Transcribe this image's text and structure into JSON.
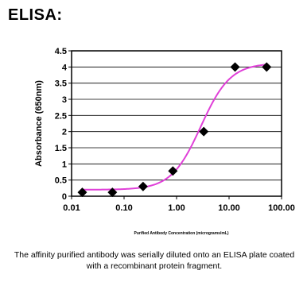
{
  "page": {
    "title": "ELISA:",
    "caption": "The affinity purified antibody was serially diluted onto an ELISA plate coated with a recombinant protein fragment."
  },
  "colors": {
    "curve": "#e040d8",
    "marker": "#000000",
    "plot_border": "#000000",
    "gridline": "#000000"
  },
  "chart_data": {
    "type": "scatter",
    "title": "",
    "xlabel": "Purified Antibody Concentration (micrograms/mL)",
    "ylabel": "Absorbance (650nm)",
    "xscale": "log",
    "xlim": [
      0.01,
      100
    ],
    "ylim": [
      0,
      4.5
    ],
    "grid": "horizontal",
    "legend": "none",
    "x_ticks": [
      {
        "value": 0.01,
        "label": "0.01"
      },
      {
        "value": 0.1,
        "label": "0.10"
      },
      {
        "value": 1,
        "label": "1.00"
      },
      {
        "value": 10,
        "label": "10.00"
      },
      {
        "value": 100,
        "label": "100.00"
      }
    ],
    "y_ticks": [
      {
        "value": 0,
        "label": "0"
      },
      {
        "value": 0.5,
        "label": "0.5"
      },
      {
        "value": 1,
        "label": "1"
      },
      {
        "value": 1.5,
        "label": "1.5"
      },
      {
        "value": 2,
        "label": "2"
      },
      {
        "value": 2.5,
        "label": "2.5"
      },
      {
        "value": 3,
        "label": "3"
      },
      {
        "value": 3.5,
        "label": "3.5"
      },
      {
        "value": 4,
        "label": "4"
      },
      {
        "value": 4.5,
        "label": "4.5"
      }
    ],
    "series": [
      {
        "marker": "diamond",
        "points": [
          {
            "x": 0.016,
            "y": 0.12
          },
          {
            "x": 0.06,
            "y": 0.12
          },
          {
            "x": 0.23,
            "y": 0.3
          },
          {
            "x": 0.85,
            "y": 0.78
          },
          {
            "x": 3.3,
            "y": 2.0
          },
          {
            "x": 13,
            "y": 4.0
          },
          {
            "x": 52,
            "y": 4.0
          }
        ]
      }
    ],
    "fit_curve": {
      "model": "4PL",
      "bottom": 0.2,
      "top": 4.12,
      "ec50": 2.9,
      "hill": 1.55
    }
  }
}
